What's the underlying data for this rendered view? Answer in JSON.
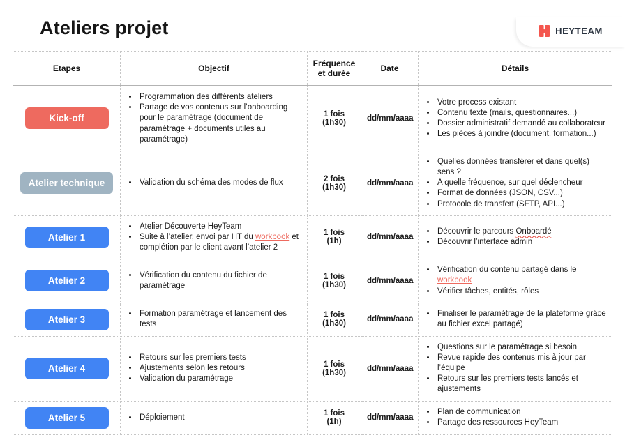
{
  "brand": {
    "name": "HEYTEAM",
    "logo_color": "#f4564e"
  },
  "page_title": "Ateliers projet",
  "table": {
    "headers": [
      "Etapes",
      "Objectif",
      "Fréquence et durée",
      "Date",
      "Détails"
    ],
    "rows": [
      {
        "etape": "Kick-off",
        "etape_color": "#ee6a5f",
        "objectif": [
          "Programmation des différents ateliers",
          "Partage de vos contenus sur l’onboarding pour le paramétrage (document de paramétrage + documents utiles au paramétrage)"
        ],
        "frequence": "1 fois",
        "duree": "(1h30)",
        "date": "dd/mm/aaaa",
        "details": [
          "Votre process existant",
          "Contenu texte (mails, questionnaires...)",
          "Dossier administratif demandé au collaborateur",
          "Les pièces à joindre (document, formation...)"
        ]
      },
      {
        "etape": "Atelier technique",
        "etape_color": "#a0b4c2",
        "objectif": [
          "Validation du schéma des modes de flux"
        ],
        "frequence": "2 fois",
        "duree": "(1h30)",
        "date": "dd/mm/aaaa",
        "details": [
          "Quelles données transférer et dans quel(s) sens ?",
          "A quelle fréquence, sur quel déclencheur",
          "Format de données (JSON, CSV...)",
          "Protocole de transfert (SFTP, API...)"
        ]
      },
      {
        "etape": "Atelier 1",
        "etape_color": "#4184f4",
        "objectif": [
          "Atelier Découverte HeyTeam",
          [
            "Suite à l’atelier, envoi par HT du ",
            {
              "text": "workbook",
              "style": "link"
            },
            " et complétion par le client avant l’atelier 2"
          ]
        ],
        "frequence": "1 fois",
        "duree": "(1h)",
        "date": "dd/mm/aaaa",
        "details": [
          [
            "Découvrir le parcours ",
            {
              "text": "Onboardé",
              "style": "misspell"
            }
          ],
          "Découvrir l’interface admin"
        ]
      },
      {
        "etape": "Atelier 2",
        "etape_color": "#4184f4",
        "objectif": [
          "Vérification du contenu du fichier de paramétrage"
        ],
        "frequence": "1 fois",
        "duree": "(1h30)",
        "date": "dd/mm/aaaa",
        "details": [
          [
            "Vérification du contenu partagé dans le ",
            {
              "text": "workbook",
              "style": "link"
            }
          ],
          "Vérifier tâches, entités, rôles"
        ]
      },
      {
        "etape": "Atelier 3",
        "etape_color": "#4184f4",
        "objectif": [
          "Formation paramétrage et lancement des tests"
        ],
        "frequence": "1 fois",
        "duree": "(1h30)",
        "date": "dd/mm/aaaa",
        "details": [
          "Finaliser le paramétrage de la plateforme grâce au fichier excel partagé)"
        ]
      },
      {
        "etape": "Atelier 4",
        "etape_color": "#4184f4",
        "objectif": [
          "Retours sur les premiers tests",
          "Ajustements selon les retours",
          "Validation du paramétrage"
        ],
        "frequence": "1 fois",
        "duree": "(1h30)",
        "date": "dd/mm/aaaa",
        "details": [
          "Questions sur le paramétrage si besoin",
          "Revue rapide des contenus mis à jour par l’équipe",
          "Retours sur les premiers tests lancés et ajustements"
        ]
      },
      {
        "etape": "Atelier 5",
        "etape_color": "#4184f4",
        "objectif": [
          "Déploiement"
        ],
        "frequence": "1 fois",
        "duree": "(1h)",
        "date": "dd/mm/aaaa",
        "details": [
          "Plan de communication",
          "Partage des ressources HeyTeam"
        ]
      }
    ]
  }
}
